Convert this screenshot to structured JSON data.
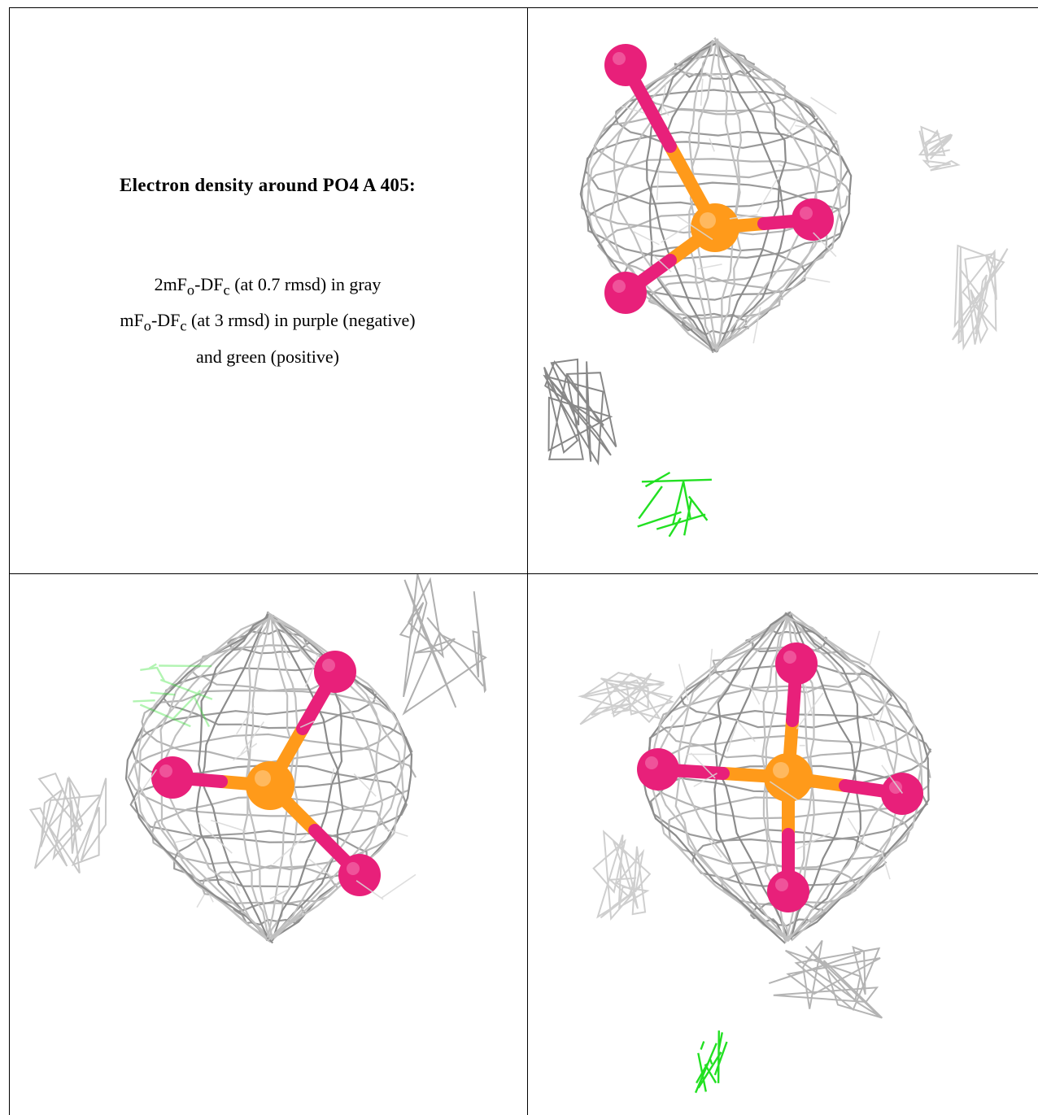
{
  "caption": {
    "title": "Electron density around PO4 A 405:",
    "line1_pre": "2mF",
    "line1_sub1": "o",
    "line1_mid": "-DF",
    "line1_sub2": "c",
    "line1_post": " (at 0.7 rmsd) in gray",
    "line2_pre": "mF",
    "line2_sub1": "o",
    "line2_mid": "-DF",
    "line2_sub2": "c",
    "line2_post": " (at 3 rmsd) in purple (negative)",
    "line3": "and green (positive)"
  },
  "colors": {
    "mesh_2fofc": "#9a9a9a",
    "mesh_light": "#cfcfcf",
    "positive_diff": "#22e022",
    "phosphorus": "#ff9a1a",
    "oxygen": "#e8207a"
  },
  "panels": [
    {
      "name": "view-top-right",
      "atom_p": [
        230,
        270
      ],
      "oxygens": [
        [
          120,
          70
        ],
        [
          350,
          260
        ],
        [
          120,
          350
        ]
      ],
      "mesh_center": [
        230,
        230
      ],
      "mesh_rx": 180,
      "mesh_ry": 190,
      "positive_blob": [
        [
          130,
          600
        ],
        [
          230,
          590
        ]
      ]
    },
    {
      "name": "view-bottom-left",
      "atom_p": [
        320,
        260
      ],
      "oxygens": [
        [
          400,
          120
        ],
        [
          200,
          250
        ],
        [
          430,
          370
        ]
      ],
      "mesh_center": [
        320,
        250
      ],
      "mesh_rx": 190,
      "mesh_ry": 200,
      "positive_blob": [
        [
          150,
          140
        ],
        [
          260,
          160
        ]
      ]
    },
    {
      "name": "view-bottom-right",
      "atom_p": [
        320,
        250
      ],
      "oxygens": [
        [
          330,
          110
        ],
        [
          160,
          240
        ],
        [
          460,
          270
        ],
        [
          320,
          390
        ]
      ],
      "mesh_center": [
        320,
        250
      ],
      "mesh_rx": 190,
      "mesh_ry": 200,
      "positive_blob": [
        [
          200,
          590
        ],
        [
          250,
          620
        ]
      ]
    }
  ]
}
